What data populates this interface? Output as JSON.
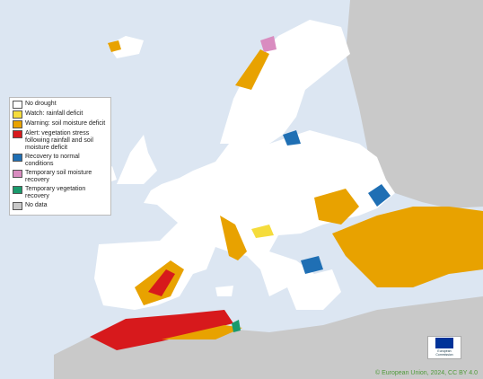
{
  "legend": {
    "items": [
      {
        "label": "No drought",
        "color": "#ffffff"
      },
      {
        "label": "Watch: rainfall deficit",
        "color": "#f5dc3c"
      },
      {
        "label": "Warning: soil moisture deficit",
        "color": "#e8a200"
      },
      {
        "label": "Alert: vegetation stress following rainfall and soil moisture  deficit",
        "color": "#d7191c"
      },
      {
        "label": "Recovery to normal conditions",
        "color": "#1f6fb4"
      },
      {
        "label": "Temporary soil moisture recovery",
        "color": "#d98cc0"
      },
      {
        "label": "Temporary vegetation recovery",
        "color": "#1a9a6c"
      },
      {
        "label": "No data",
        "color": "#c8c8c8"
      }
    ]
  },
  "logo": {
    "lines": [
      "European",
      "Commission"
    ]
  },
  "credit": "© European Union, 2024, CC BY 4.0"
}
